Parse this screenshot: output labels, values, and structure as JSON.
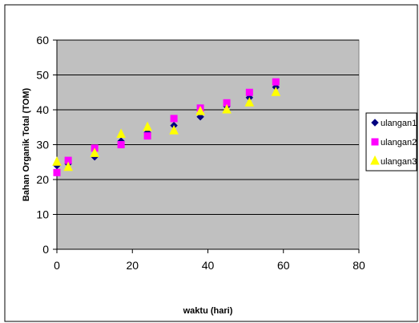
{
  "chart_data": {
    "type": "scatter",
    "xlabel": "waktu (hari)",
    "ylabel": "Bahan Organik Total (TOM)",
    "xlim": [
      0,
      80
    ],
    "ylim": [
      0,
      60
    ],
    "x_ticks": [
      "0",
      "20",
      "40",
      "60",
      "80"
    ],
    "y_ticks": [
      "0",
      "10",
      "20",
      "30",
      "40",
      "50",
      "60"
    ],
    "grid": "horizontal",
    "legend_position": "right",
    "plot_background": "#c0c0c0",
    "series": [
      {
        "name": "ulangan1",
        "marker": "diamond",
        "color": "#000080",
        "points": [
          [
            0,
            24
          ],
          [
            3,
            24.5
          ],
          [
            10,
            26.5
          ],
          [
            17,
            31
          ],
          [
            24,
            33.5
          ],
          [
            31,
            35.5
          ],
          [
            38,
            38
          ],
          [
            45,
            41
          ],
          [
            51,
            43.5
          ],
          [
            58,
            46.5
          ]
        ]
      },
      {
        "name": "ulangan2",
        "marker": "square",
        "color": "#ff00ff",
        "points": [
          [
            0,
            22
          ],
          [
            3,
            25.5
          ],
          [
            10,
            29
          ],
          [
            17,
            30
          ],
          [
            24,
            32.5
          ],
          [
            31,
            37.5
          ],
          [
            38,
            40.5
          ],
          [
            45,
            42
          ],
          [
            51,
            45
          ],
          [
            58,
            48
          ]
        ]
      },
      {
        "name": "ulangan3",
        "marker": "triangle",
        "color": "#ffff00",
        "points": [
          [
            0,
            25
          ],
          [
            3,
            23.5
          ],
          [
            10,
            27.5
          ],
          [
            17,
            33
          ],
          [
            24,
            35
          ],
          [
            31,
            34
          ],
          [
            38,
            39.5
          ],
          [
            45,
            40
          ],
          [
            51,
            42
          ],
          [
            58,
            45
          ]
        ]
      }
    ]
  }
}
